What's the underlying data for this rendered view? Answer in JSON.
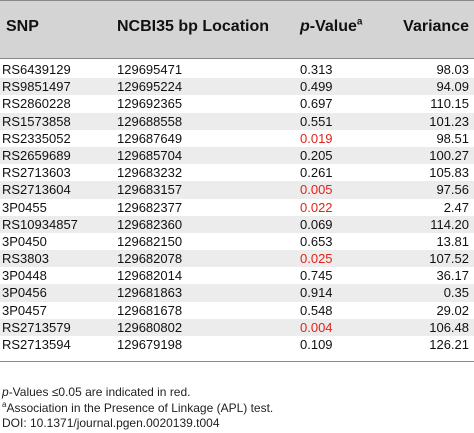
{
  "header": {
    "snp": "SNP",
    "location": "NCBI35 bp Location",
    "pvalue_prefix": "p",
    "pvalue_suffix": "-Value",
    "pvalue_footnote": "a",
    "variance": "Variance"
  },
  "rows": [
    {
      "snp": "RS6439129",
      "location": "129695471",
      "pvalue": "0.313",
      "variance": "98.03",
      "significant": false
    },
    {
      "snp": "RS9851497",
      "location": "129695224",
      "pvalue": "0.499",
      "variance": "94.09",
      "significant": false
    },
    {
      "snp": "RS2860228",
      "location": "129692365",
      "pvalue": "0.697",
      "variance": "110.15",
      "significant": false
    },
    {
      "snp": "RS1573858",
      "location": "129688558",
      "pvalue": "0.551",
      "variance": "101.23",
      "significant": false
    },
    {
      "snp": "RS2335052",
      "location": "129687649",
      "pvalue": "0.019",
      "variance": "98.51",
      "significant": true
    },
    {
      "snp": "RS2659689",
      "location": "129685704",
      "pvalue": "0.205",
      "variance": "100.27",
      "significant": false
    },
    {
      "snp": "RS2713603",
      "location": "129683232",
      "pvalue": "0.261",
      "variance": "105.83",
      "significant": false
    },
    {
      "snp": "RS2713604",
      "location": "129683157",
      "pvalue": "0.005",
      "variance": "97.56",
      "significant": true
    },
    {
      "snp": "3P0455",
      "location": "129682377",
      "pvalue": "0.022",
      "variance": "2.47",
      "significant": true
    },
    {
      "snp": "RS10934857",
      "location": "129682360",
      "pvalue": "0.069",
      "variance": "114.20",
      "significant": false
    },
    {
      "snp": "3P0450",
      "location": "129682150",
      "pvalue": "0.653",
      "variance": "13.81",
      "significant": false
    },
    {
      "snp": "RS3803",
      "location": "129682078",
      "pvalue": "0.025",
      "variance": "107.52",
      "significant": true
    },
    {
      "snp": "3P0448",
      "location": "129682014",
      "pvalue": "0.745",
      "variance": "36.17",
      "significant": false
    },
    {
      "snp": "3P0456",
      "location": "129681863",
      "pvalue": "0.914",
      "variance": "0.35",
      "significant": false
    },
    {
      "snp": "3P0457",
      "location": "129681678",
      "pvalue": "0.548",
      "variance": "29.02",
      "significant": false
    },
    {
      "snp": "RS2713579",
      "location": "129680802",
      "pvalue": "0.004",
      "variance": "106.48",
      "significant": true
    },
    {
      "snp": "RS2713594",
      "location": "129679198",
      "pvalue": "0.109",
      "variance": "126.21",
      "significant": false
    }
  ],
  "footnotes": {
    "line1_italic": "p",
    "line1_rest": "-Values ≤0.05 are indicated in red.",
    "line2_marker": "a",
    "line2_text": "Association in the Presence of Linkage (APL) test.",
    "line3": "DOI: 10.1371/journal.pgen.0020139.t004"
  },
  "colors": {
    "header_bg": "#d4d4d4",
    "alt_row_bg": "#ececec",
    "significant_text": "#e2231a"
  }
}
